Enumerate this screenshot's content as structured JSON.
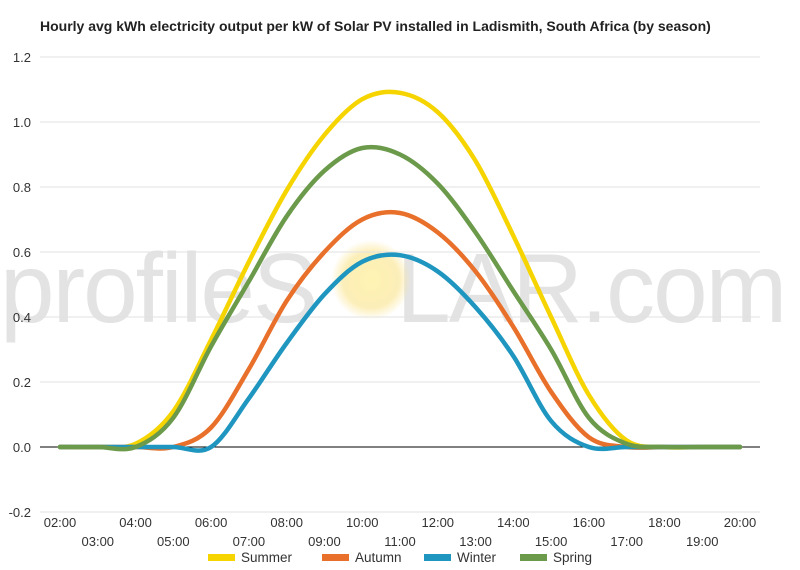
{
  "watermark": {
    "before": "profileS",
    "after": "LAR.com"
  },
  "chart_data": {
    "type": "line",
    "title": "Hourly avg kWh electricity output per kW of Solar PV installed in Ladismith, South Africa (by season)",
    "xlabel": "",
    "ylabel": "",
    "ylim": [
      -0.2,
      1.2
    ],
    "yticks": [
      "-0.2",
      "0.0",
      "0.2",
      "0.4",
      "0.6",
      "0.8",
      "1.0",
      "1.2"
    ],
    "x": [
      "02:00",
      "03:00",
      "04:00",
      "05:00",
      "06:00",
      "07:00",
      "08:00",
      "09:00",
      "10:00",
      "11:00",
      "12:00",
      "13:00",
      "14:00",
      "15:00",
      "16:00",
      "17:00",
      "18:00",
      "19:00",
      "20:00"
    ],
    "grid": true,
    "legend_position": "bottom",
    "series": [
      {
        "name": "Summer",
        "color": "#f5d400",
        "values": [
          0,
          0,
          0.01,
          0.11,
          0.33,
          0.57,
          0.79,
          0.96,
          1.07,
          1.09,
          1.03,
          0.88,
          0.65,
          0.4,
          0.16,
          0.02,
          0,
          0,
          0
        ]
      },
      {
        "name": "Autumn",
        "color": "#e8702a",
        "values": [
          0,
          0,
          0,
          0,
          0.06,
          0.24,
          0.45,
          0.6,
          0.7,
          0.72,
          0.66,
          0.54,
          0.37,
          0.17,
          0.03,
          0,
          0,
          0,
          0
        ]
      },
      {
        "name": "Winter",
        "color": "#1f96c0",
        "values": [
          0,
          0,
          0,
          0,
          0,
          0.15,
          0.32,
          0.47,
          0.57,
          0.59,
          0.54,
          0.43,
          0.28,
          0.08,
          0,
          0,
          0,
          0,
          0
        ]
      },
      {
        "name": "Spring",
        "color": "#6b9a4b",
        "values": [
          0,
          0,
          0,
          0.09,
          0.31,
          0.51,
          0.71,
          0.85,
          0.92,
          0.9,
          0.81,
          0.66,
          0.48,
          0.3,
          0.09,
          0.01,
          0,
          0,
          0
        ]
      }
    ]
  }
}
